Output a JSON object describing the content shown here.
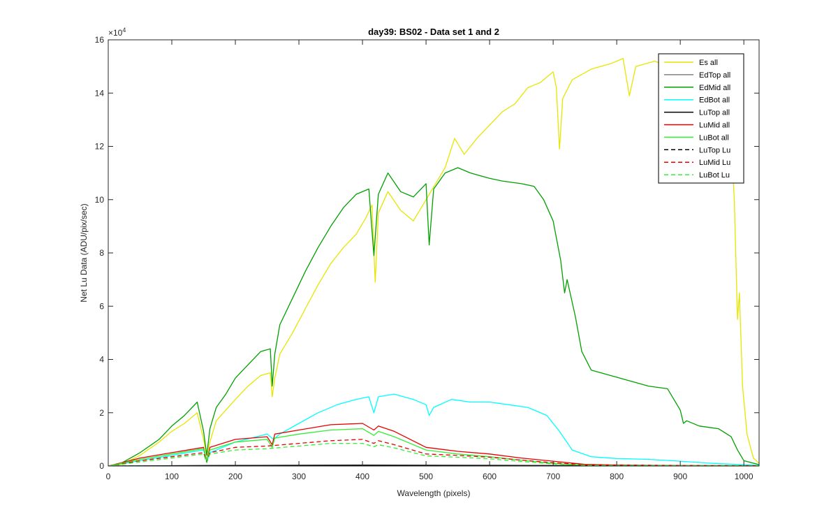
{
  "chart_data": {
    "type": "line",
    "title": "day39: BS02 - Data set 1 and 2",
    "xlabel": "Wavelength (pixels)",
    "ylabel": "Net Lu Data (ADU/pix/sec)",
    "y_exponent_label": "×10",
    "y_exponent": "4",
    "xlim": [
      0,
      1024
    ],
    "ylim": [
      0,
      16
    ],
    "x_ticks": [
      "0",
      "100",
      "200",
      "300",
      "400",
      "500",
      "600",
      "700",
      "800",
      "900",
      "1000"
    ],
    "y_ticks": [
      "0",
      "2",
      "4",
      "6",
      "8",
      "10",
      "12",
      "14",
      "16"
    ],
    "grid": false,
    "legend_position": "top-right",
    "series": [
      {
        "name": "Es  all",
        "color": "#e6e600",
        "dash": "solid",
        "points": [
          [
            0,
            0
          ],
          [
            20,
            0.05
          ],
          [
            50,
            0.4
          ],
          [
            80,
            0.9
          ],
          [
            100,
            1.3
          ],
          [
            120,
            1.6
          ],
          [
            140,
            2.0
          ],
          [
            150,
            1.0
          ],
          [
            155,
            0.4
          ],
          [
            160,
            0.9
          ],
          [
            170,
            1.7
          ],
          [
            185,
            2.1
          ],
          [
            200,
            2.5
          ],
          [
            220,
            3.0
          ],
          [
            240,
            3.4
          ],
          [
            255,
            3.5
          ],
          [
            258,
            2.6
          ],
          [
            262,
            3.3
          ],
          [
            270,
            4.2
          ],
          [
            290,
            5.0
          ],
          [
            310,
            5.9
          ],
          [
            330,
            6.8
          ],
          [
            350,
            7.6
          ],
          [
            370,
            8.2
          ],
          [
            390,
            8.7
          ],
          [
            405,
            9.3
          ],
          [
            415,
            9.8
          ],
          [
            420,
            6.9
          ],
          [
            425,
            9.5
          ],
          [
            440,
            10.3
          ],
          [
            460,
            9.6
          ],
          [
            480,
            9.2
          ],
          [
            500,
            10.0
          ],
          [
            515,
            10.6
          ],
          [
            530,
            11.2
          ],
          [
            545,
            12.3
          ],
          [
            560,
            11.7
          ],
          [
            580,
            12.3
          ],
          [
            600,
            12.8
          ],
          [
            620,
            13.3
          ],
          [
            640,
            13.6
          ],
          [
            660,
            14.2
          ],
          [
            680,
            14.4
          ],
          [
            700,
            14.8
          ],
          [
            705,
            14.2
          ],
          [
            710,
            11.9
          ],
          [
            715,
            13.8
          ],
          [
            730,
            14.5
          ],
          [
            760,
            14.9
          ],
          [
            790,
            15.1
          ],
          [
            810,
            15.3
          ],
          [
            820,
            13.9
          ],
          [
            830,
            15.0
          ],
          [
            860,
            15.2
          ],
          [
            880,
            15.0
          ],
          [
            920,
            15.3
          ],
          [
            950,
            15.1
          ],
          [
            975,
            14.4
          ],
          [
            985,
            10.0
          ],
          [
            990,
            5.5
          ],
          [
            993,
            6.5
          ],
          [
            998,
            3.0
          ],
          [
            1005,
            1.2
          ],
          [
            1015,
            0.3
          ],
          [
            1024,
            0.1
          ]
        ]
      },
      {
        "name": "EdTop  all",
        "color": "#808080",
        "dash": "solid",
        "points": [
          [
            0,
            0
          ],
          [
            200,
            0.02
          ],
          [
            400,
            0.04
          ],
          [
            600,
            0.03
          ],
          [
            800,
            0.01
          ],
          [
            1024,
            0
          ]
        ]
      },
      {
        "name": "EdMid  all",
        "color": "#00a000",
        "dash": "solid",
        "points": [
          [
            0,
            0
          ],
          [
            20,
            0.1
          ],
          [
            50,
            0.5
          ],
          [
            80,
            1.0
          ],
          [
            100,
            1.5
          ],
          [
            120,
            1.9
          ],
          [
            140,
            2.4
          ],
          [
            150,
            1.3
          ],
          [
            155,
            0.4
          ],
          [
            160,
            1.4
          ],
          [
            170,
            2.2
          ],
          [
            185,
            2.7
          ],
          [
            200,
            3.3
          ],
          [
            220,
            3.8
          ],
          [
            240,
            4.3
          ],
          [
            255,
            4.4
          ],
          [
            258,
            3.0
          ],
          [
            262,
            4.2
          ],
          [
            270,
            5.3
          ],
          [
            290,
            6.3
          ],
          [
            310,
            7.3
          ],
          [
            330,
            8.2
          ],
          [
            350,
            9.0
          ],
          [
            370,
            9.7
          ],
          [
            390,
            10.2
          ],
          [
            410,
            10.4
          ],
          [
            418,
            7.9
          ],
          [
            425,
            10.2
          ],
          [
            440,
            11.0
          ],
          [
            460,
            10.3
          ],
          [
            480,
            10.1
          ],
          [
            500,
            10.6
          ],
          [
            505,
            8.3
          ],
          [
            512,
            10.4
          ],
          [
            530,
            11.0
          ],
          [
            550,
            11.2
          ],
          [
            570,
            11.0
          ],
          [
            600,
            10.8
          ],
          [
            620,
            10.7
          ],
          [
            650,
            10.6
          ],
          [
            670,
            10.5
          ],
          [
            685,
            10.0
          ],
          [
            700,
            9.2
          ],
          [
            712,
            7.7
          ],
          [
            718,
            6.5
          ],
          [
            722,
            7.0
          ],
          [
            735,
            5.6
          ],
          [
            745,
            4.3
          ],
          [
            760,
            3.6
          ],
          [
            790,
            3.4
          ],
          [
            820,
            3.2
          ],
          [
            850,
            3.0
          ],
          [
            880,
            2.9
          ],
          [
            900,
            2.1
          ],
          [
            905,
            1.6
          ],
          [
            910,
            1.7
          ],
          [
            930,
            1.5
          ],
          [
            960,
            1.4
          ],
          [
            980,
            1.1
          ],
          [
            990,
            0.6
          ],
          [
            1000,
            0.2
          ],
          [
            1024,
            0.05
          ]
        ]
      },
      {
        "name": "EdBot  all",
        "color": "#00ffff",
        "dash": "solid",
        "points": [
          [
            0,
            0
          ],
          [
            50,
            0.2
          ],
          [
            100,
            0.4
          ],
          [
            150,
            0.6
          ],
          [
            155,
            0.15
          ],
          [
            160,
            0.5
          ],
          [
            200,
            0.9
          ],
          [
            250,
            1.2
          ],
          [
            260,
            1.0
          ],
          [
            270,
            1.2
          ],
          [
            300,
            1.6
          ],
          [
            330,
            2.0
          ],
          [
            360,
            2.3
          ],
          [
            390,
            2.5
          ],
          [
            410,
            2.6
          ],
          [
            418,
            2.0
          ],
          [
            425,
            2.6
          ],
          [
            450,
            2.7
          ],
          [
            480,
            2.5
          ],
          [
            500,
            2.3
          ],
          [
            505,
            1.9
          ],
          [
            512,
            2.2
          ],
          [
            540,
            2.5
          ],
          [
            570,
            2.4
          ],
          [
            600,
            2.4
          ],
          [
            630,
            2.3
          ],
          [
            660,
            2.2
          ],
          [
            690,
            1.9
          ],
          [
            710,
            1.3
          ],
          [
            730,
            0.6
          ],
          [
            760,
            0.35
          ],
          [
            800,
            0.28
          ],
          [
            850,
            0.25
          ],
          [
            900,
            0.18
          ],
          [
            950,
            0.1
          ],
          [
            1000,
            0.05
          ],
          [
            1024,
            0.02
          ]
        ]
      },
      {
        "name": "LuTop  all",
        "color": "#000000",
        "dash": "solid",
        "points": [
          [
            0,
            0
          ],
          [
            200,
            0.02
          ],
          [
            400,
            0.03
          ],
          [
            600,
            0.02
          ],
          [
            800,
            0.01
          ],
          [
            1024,
            0
          ]
        ]
      },
      {
        "name": "LuMid  all",
        "color": "#e60000",
        "dash": "solid",
        "points": [
          [
            0,
            0
          ],
          [
            50,
            0.3
          ],
          [
            100,
            0.5
          ],
          [
            150,
            0.7
          ],
          [
            155,
            0.2
          ],
          [
            160,
            0.7
          ],
          [
            200,
            1.0
          ],
          [
            250,
            1.1
          ],
          [
            258,
            0.8
          ],
          [
            262,
            1.2
          ],
          [
            300,
            1.35
          ],
          [
            350,
            1.55
          ],
          [
            400,
            1.6
          ],
          [
            418,
            1.35
          ],
          [
            425,
            1.5
          ],
          [
            450,
            1.3
          ],
          [
            500,
            0.7
          ],
          [
            550,
            0.55
          ],
          [
            600,
            0.45
          ],
          [
            650,
            0.3
          ],
          [
            700,
            0.18
          ],
          [
            750,
            0.06
          ],
          [
            800,
            0.04
          ],
          [
            850,
            0.03
          ],
          [
            900,
            0.02
          ],
          [
            1024,
            0.01
          ]
        ]
      },
      {
        "name": "LuBot  all",
        "color": "#33ee33",
        "dash": "solid",
        "points": [
          [
            0,
            0
          ],
          [
            50,
            0.25
          ],
          [
            100,
            0.45
          ],
          [
            150,
            0.65
          ],
          [
            155,
            0.2
          ],
          [
            160,
            0.6
          ],
          [
            200,
            0.9
          ],
          [
            250,
            1.0
          ],
          [
            258,
            0.7
          ],
          [
            262,
            1.05
          ],
          [
            300,
            1.2
          ],
          [
            350,
            1.35
          ],
          [
            400,
            1.4
          ],
          [
            418,
            1.15
          ],
          [
            425,
            1.3
          ],
          [
            450,
            1.1
          ],
          [
            500,
            0.6
          ],
          [
            550,
            0.45
          ],
          [
            600,
            0.35
          ],
          [
            650,
            0.22
          ],
          [
            700,
            0.1
          ],
          [
            750,
            0.03
          ],
          [
            800,
            0.02
          ],
          [
            1024,
            0.01
          ]
        ]
      },
      {
        "name": "LuTop  Lu",
        "color": "#000000",
        "dash": "dashed",
        "points": [
          [
            0,
            0
          ],
          [
            200,
            0.01
          ],
          [
            400,
            0.02
          ],
          [
            600,
            0.015
          ],
          [
            800,
            0.01
          ],
          [
            1024,
            0
          ]
        ]
      },
      {
        "name": "LuMid  Lu",
        "color": "#e60000",
        "dash": "dashed",
        "points": [
          [
            0,
            0
          ],
          [
            50,
            0.2
          ],
          [
            100,
            0.35
          ],
          [
            150,
            0.5
          ],
          [
            155,
            0.15
          ],
          [
            160,
            0.5
          ],
          [
            200,
            0.7
          ],
          [
            250,
            0.75
          ],
          [
            300,
            0.85
          ],
          [
            350,
            0.95
          ],
          [
            400,
            1.0
          ],
          [
            418,
            0.85
          ],
          [
            425,
            0.95
          ],
          [
            450,
            0.8
          ],
          [
            500,
            0.45
          ],
          [
            550,
            0.4
          ],
          [
            600,
            0.33
          ],
          [
            650,
            0.22
          ],
          [
            700,
            0.12
          ],
          [
            750,
            0.05
          ],
          [
            800,
            0.03
          ],
          [
            1024,
            0.01
          ]
        ]
      },
      {
        "name": "LuBot  Lu",
        "color": "#33ee33",
        "dash": "dashed",
        "points": [
          [
            0,
            0
          ],
          [
            50,
            0.15
          ],
          [
            100,
            0.3
          ],
          [
            150,
            0.45
          ],
          [
            155,
            0.12
          ],
          [
            160,
            0.45
          ],
          [
            200,
            0.6
          ],
          [
            250,
            0.65
          ],
          [
            300,
            0.75
          ],
          [
            350,
            0.85
          ],
          [
            400,
            0.85
          ],
          [
            418,
            0.72
          ],
          [
            425,
            0.8
          ],
          [
            450,
            0.68
          ],
          [
            500,
            0.38
          ],
          [
            550,
            0.33
          ],
          [
            600,
            0.27
          ],
          [
            650,
            0.17
          ],
          [
            700,
            0.08
          ],
          [
            750,
            0.03
          ],
          [
            800,
            0.02
          ],
          [
            1024,
            0.01
          ]
        ]
      }
    ]
  }
}
